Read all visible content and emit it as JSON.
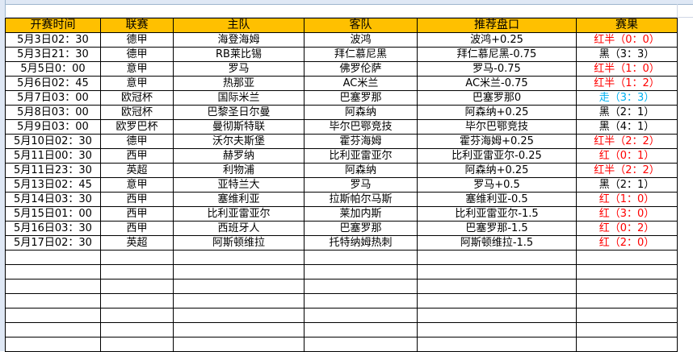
{
  "headers": [
    "开赛时间",
    "联赛",
    "主队",
    "客队",
    "推荐盘口",
    "赛果"
  ],
  "colors": {
    "header_bg": "#FFC000",
    "red": "#FF0000",
    "blue": "#00B0F0",
    "black": "#000000"
  },
  "rows": [
    {
      "time": "5月3日02：30",
      "league": "德甲",
      "home": "海登海姆",
      "away": "波鸿",
      "pick": "波鸿+0.25",
      "result": "红半（0：0）",
      "color": "red"
    },
    {
      "time": "5月3日21：30",
      "league": "德甲",
      "home": "RB莱比锡",
      "away": "拜仁慕尼黑",
      "pick": "拜仁慕尼黑-0.75",
      "result": "黑（3：3）",
      "color": "black"
    },
    {
      "time": "5月5日0：00",
      "league": "意甲",
      "home": "罗马",
      "away": "佛罗伦萨",
      "pick": "罗马-0.75",
      "result": "红半（1：0）",
      "color": "red"
    },
    {
      "time": "5月6日02：45",
      "league": "意甲",
      "home": "热那亚",
      "away": "AC米兰",
      "pick": "AC米兰-0.75",
      "result": "红半（1：2）",
      "color": "red"
    },
    {
      "time": "5月7日03：00",
      "league": "欧冠杯",
      "home": "国际米兰",
      "away": "巴塞罗那",
      "pick": "巴塞罗那0",
      "result": "走（3：3）",
      "color": "blue"
    },
    {
      "time": "5月8日03：00",
      "league": "欧冠杯",
      "home": "巴黎圣日尔曼",
      "away": "阿森纳",
      "pick": "阿森纳+0.25",
      "result": "黑（2：1）",
      "color": "black"
    },
    {
      "time": "5月9日03：00",
      "league": "欧罗巴杯",
      "home": "曼彻斯特联",
      "away": "毕尔巴鄂竞技",
      "pick": "毕尔巴鄂竞技",
      "result": "黑（4：1）",
      "color": "black"
    },
    {
      "time": "5月10日02：30",
      "league": "德甲",
      "home": "沃尔夫斯堡",
      "away": "霍芬海姆",
      "pick": "霍芬海姆+0.25",
      "result": "红半（2：2）",
      "color": "red"
    },
    {
      "time": "5月11日00：30",
      "league": "西甲",
      "home": "赫罗纳",
      "away": "比利亚雷亚尔",
      "pick": "比利亚雷亚尔-0.25",
      "result": "红（0：1）",
      "color": "red"
    },
    {
      "time": "5月11日23：30",
      "league": "英超",
      "home": "利物浦",
      "away": "阿森纳",
      "pick": "阿森纳+0.25",
      "result": "红半（2：2）",
      "color": "red"
    },
    {
      "time": "5月13日02：45",
      "league": "意甲",
      "home": "亚特兰大",
      "away": "罗马",
      "pick": "罗马+0.5",
      "result": "黑（2：1）",
      "color": "black"
    },
    {
      "time": "5月14日03：30",
      "league": "西甲",
      "home": "塞维利亚",
      "away": "拉斯帕尔马斯",
      "pick": "塞维利亚-0.5",
      "result": "红（1：0）",
      "color": "red"
    },
    {
      "time": "5月15日01：00",
      "league": "西甲",
      "home": "比利亚雷亚尔",
      "away": "莱加内斯",
      "pick": "比利亚雷亚尔-1.5",
      "result": "红（3：0）",
      "color": "red"
    },
    {
      "time": "5月16日03：30",
      "league": "西甲",
      "home": "西班牙人",
      "away": "巴塞罗那",
      "pick": "巴塞罗那-1.5",
      "result": "红（0：2）",
      "color": "red"
    },
    {
      "time": "5月17日02：30",
      "league": "英超",
      "home": "阿斯顿维拉",
      "away": "托特纳姆热刺",
      "pick": "阿斯顿维拉-1.5",
      "result": "红（2：0）",
      "color": "red"
    }
  ]
}
